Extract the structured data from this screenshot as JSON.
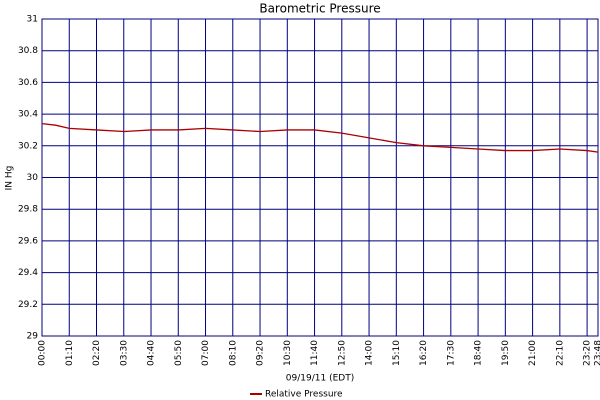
{
  "chart_data": {
    "type": "line",
    "title": "Barometric Pressure",
    "xlabel": "09/19/11 (EDT)",
    "ylabel": "IN Hg",
    "x": [
      0,
      35,
      70,
      140,
      210,
      280,
      350,
      420,
      490,
      560,
      630,
      700,
      770,
      840,
      910,
      980,
      1050,
      1120,
      1190,
      1260,
      1330,
      1400,
      1428
    ],
    "series": [
      {
        "name": "Relative Pressure",
        "color": "#aa0000",
        "values": [
          30.34,
          30.33,
          30.31,
          30.3,
          30.29,
          30.3,
          30.3,
          30.31,
          30.3,
          30.29,
          30.3,
          30.3,
          30.28,
          30.25,
          30.22,
          30.2,
          30.19,
          30.18,
          30.17,
          30.17,
          30.18,
          30.17,
          30.16
        ]
      }
    ],
    "xlim": [
      0,
      1428
    ],
    "xticks": [
      {
        "value": 0,
        "label": "00:00"
      },
      {
        "value": 70,
        "label": "01:10"
      },
      {
        "value": 140,
        "label": "02:20"
      },
      {
        "value": 210,
        "label": "03:30"
      },
      {
        "value": 280,
        "label": "04:40"
      },
      {
        "value": 350,
        "label": "05:50"
      },
      {
        "value": 420,
        "label": "07:00"
      },
      {
        "value": 490,
        "label": "08:10"
      },
      {
        "value": 560,
        "label": "09:20"
      },
      {
        "value": 630,
        "label": "10:30"
      },
      {
        "value": 700,
        "label": "11:40"
      },
      {
        "value": 770,
        "label": "12:50"
      },
      {
        "value": 840,
        "label": "14:00"
      },
      {
        "value": 910,
        "label": "15:10"
      },
      {
        "value": 980,
        "label": "16:20"
      },
      {
        "value": 1050,
        "label": "17:30"
      },
      {
        "value": 1120,
        "label": "18:40"
      },
      {
        "value": 1190,
        "label": "19:50"
      },
      {
        "value": 1260,
        "label": "21:00"
      },
      {
        "value": 1330,
        "label": "22:10"
      },
      {
        "value": 1400,
        "label": "23:20"
      },
      {
        "value": 1428,
        "label": "23:48"
      }
    ],
    "ylim": [
      29,
      31
    ],
    "yticks": [
      29,
      29.2,
      29.4,
      29.6,
      29.8,
      30,
      30.2,
      30.4,
      30.6,
      30.8,
      31
    ],
    "grid": true,
    "grid_color": "#000080"
  }
}
